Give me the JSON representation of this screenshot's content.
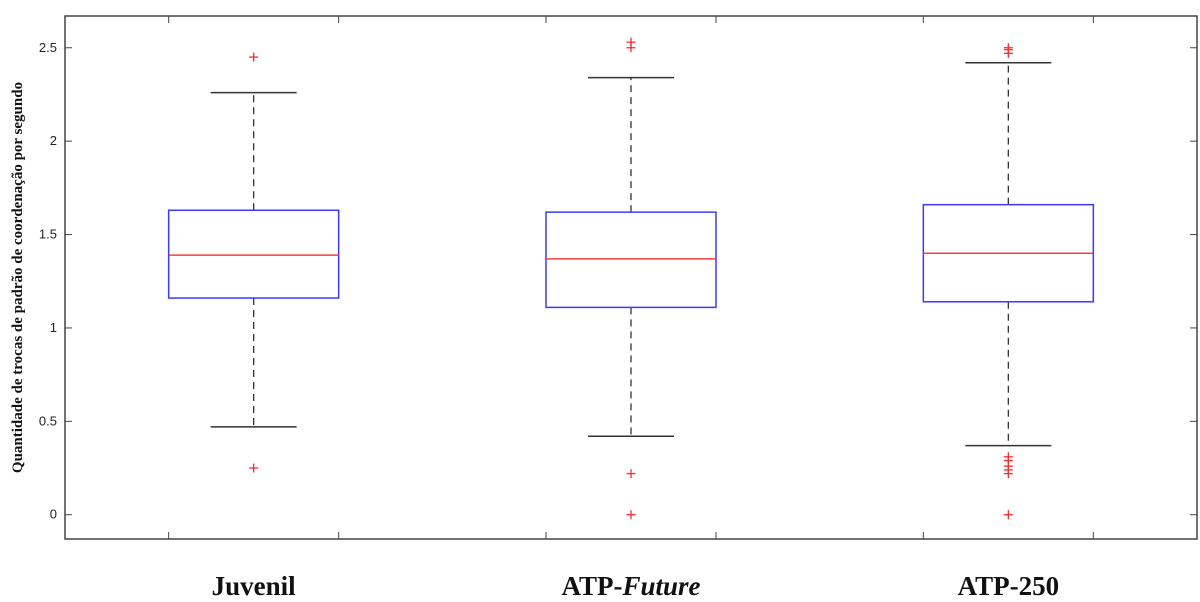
{
  "chart_data": {
    "type": "box",
    "title": "",
    "xlabel": "",
    "ylabel": "Quantidade de trocas de padrão de coordenação por segundo",
    "ylim": [
      -0.13,
      2.67
    ],
    "yticks": [
      0,
      0.5,
      1,
      1.5,
      2,
      2.5
    ],
    "ytick_labels": [
      "0",
      "0.5",
      "1",
      "1.5",
      "2",
      "2.5"
    ],
    "grid": false,
    "categories": [
      {
        "label_main": "Juvenil",
        "label_italic": ""
      },
      {
        "label_main": "ATP-",
        "label_italic": "Future"
      },
      {
        "label_main": "ATP-250",
        "label_italic": ""
      }
    ],
    "boxes": [
      {
        "whisker_low": 0.47,
        "q1": 1.16,
        "median": 1.39,
        "q3": 1.63,
        "whisker_high": 2.26,
        "outliers": [
          0.25,
          2.45
        ]
      },
      {
        "whisker_low": 0.42,
        "q1": 1.11,
        "median": 1.37,
        "q3": 1.62,
        "whisker_high": 2.34,
        "outliers": [
          0.0,
          0.22,
          2.5,
          2.53
        ]
      },
      {
        "whisker_low": 0.37,
        "q1": 1.14,
        "median": 1.4,
        "q3": 1.66,
        "whisker_high": 2.42,
        "outliers": [
          0.0,
          0.22,
          0.24,
          0.26,
          0.29,
          0.31,
          2.47,
          2.49,
          2.5
        ]
      }
    ],
    "colors": {
      "box": "#3a3aff",
      "median": "#ff3a3a",
      "whisker": "#333333",
      "outlier": "#ff2a2a",
      "axis": "#444444"
    }
  }
}
